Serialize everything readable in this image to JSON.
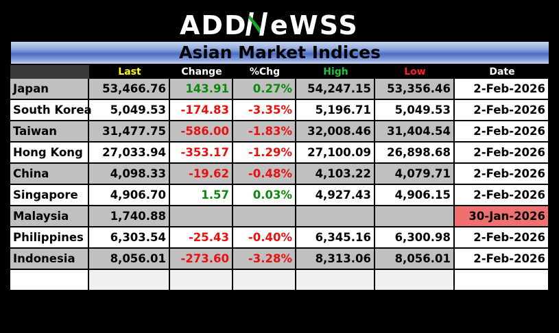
{
  "brand": {
    "left": "ADD",
    "mid": "N",
    "right": "eWSS"
  },
  "title": "Asian Market Indices",
  "columns": [
    {
      "label": "",
      "color": "#ffffff"
    },
    {
      "label": "Last",
      "color": "#ffff00"
    },
    {
      "label": "Change",
      "color": "#ffffff"
    },
    {
      "label": "%Chg",
      "color": "#ffffff"
    },
    {
      "label": "High",
      "color": "#22c33a"
    },
    {
      "label": "Low",
      "color": "#ff2020"
    },
    {
      "label": "Date",
      "color": "#ffffff"
    }
  ],
  "rows": [
    {
      "name": "Japan",
      "last": "53,466.76",
      "change": "143.91",
      "pct": "0.27%",
      "high": "54,247.15",
      "low": "53,356.46",
      "date": "2-Feb-2026",
      "dir": "pos",
      "stale": false
    },
    {
      "name": "South Korea",
      "last": "5,049.53",
      "change": "-174.83",
      "pct": "-3.35%",
      "high": "5,196.71",
      "low": "5,049.53",
      "date": "2-Feb-2026",
      "dir": "neg",
      "stale": false
    },
    {
      "name": "Taiwan",
      "last": "31,477.75",
      "change": "-586.00",
      "pct": "-1.83%",
      "high": "32,008.46",
      "low": "31,404.54",
      "date": "2-Feb-2026",
      "dir": "neg",
      "stale": false
    },
    {
      "name": "Hong Kong",
      "last": "27,033.94",
      "change": "-353.17",
      "pct": "-1.29%",
      "high": "27,100.09",
      "low": "26,898.68",
      "date": "2-Feb-2026",
      "dir": "neg",
      "stale": false
    },
    {
      "name": "China",
      "last": "4,098.33",
      "change": "-19.62",
      "pct": "-0.48%",
      "high": "4,103.22",
      "low": "4,079.71",
      "date": "2-Feb-2026",
      "dir": "neg",
      "stale": false
    },
    {
      "name": "Singapore",
      "last": "4,906.70",
      "change": "1.57",
      "pct": "0.03%",
      "high": "4,927.43",
      "low": "4,906.15",
      "date": "2-Feb-2026",
      "dir": "pos",
      "stale": false
    },
    {
      "name": "Malaysia",
      "last": "1,740.88",
      "change": "",
      "pct": "",
      "high": "",
      "low": "",
      "date": "30-Jan-2026",
      "dir": "none",
      "stale": true
    },
    {
      "name": "Philippines",
      "last": "6,303.54",
      "change": "-25.43",
      "pct": "-0.40%",
      "high": "6,345.16",
      "low": "6,300.98",
      "date": "2-Feb-2026",
      "dir": "neg",
      "stale": false
    },
    {
      "name": "Indonesia",
      "last": "8,056.01",
      "change": "-273.60",
      "pct": "-3.28%",
      "high": "8,313.06",
      "low": "8,056.01",
      "date": "2-Feb-2026",
      "dir": "neg",
      "stale": false
    }
  ],
  "colors": {
    "positive": "#0a8a0a",
    "negative": "#e81010",
    "stale_date": "#f07070",
    "row_gray": "#c0c0c0",
    "logo_accent": "#16a82a"
  }
}
